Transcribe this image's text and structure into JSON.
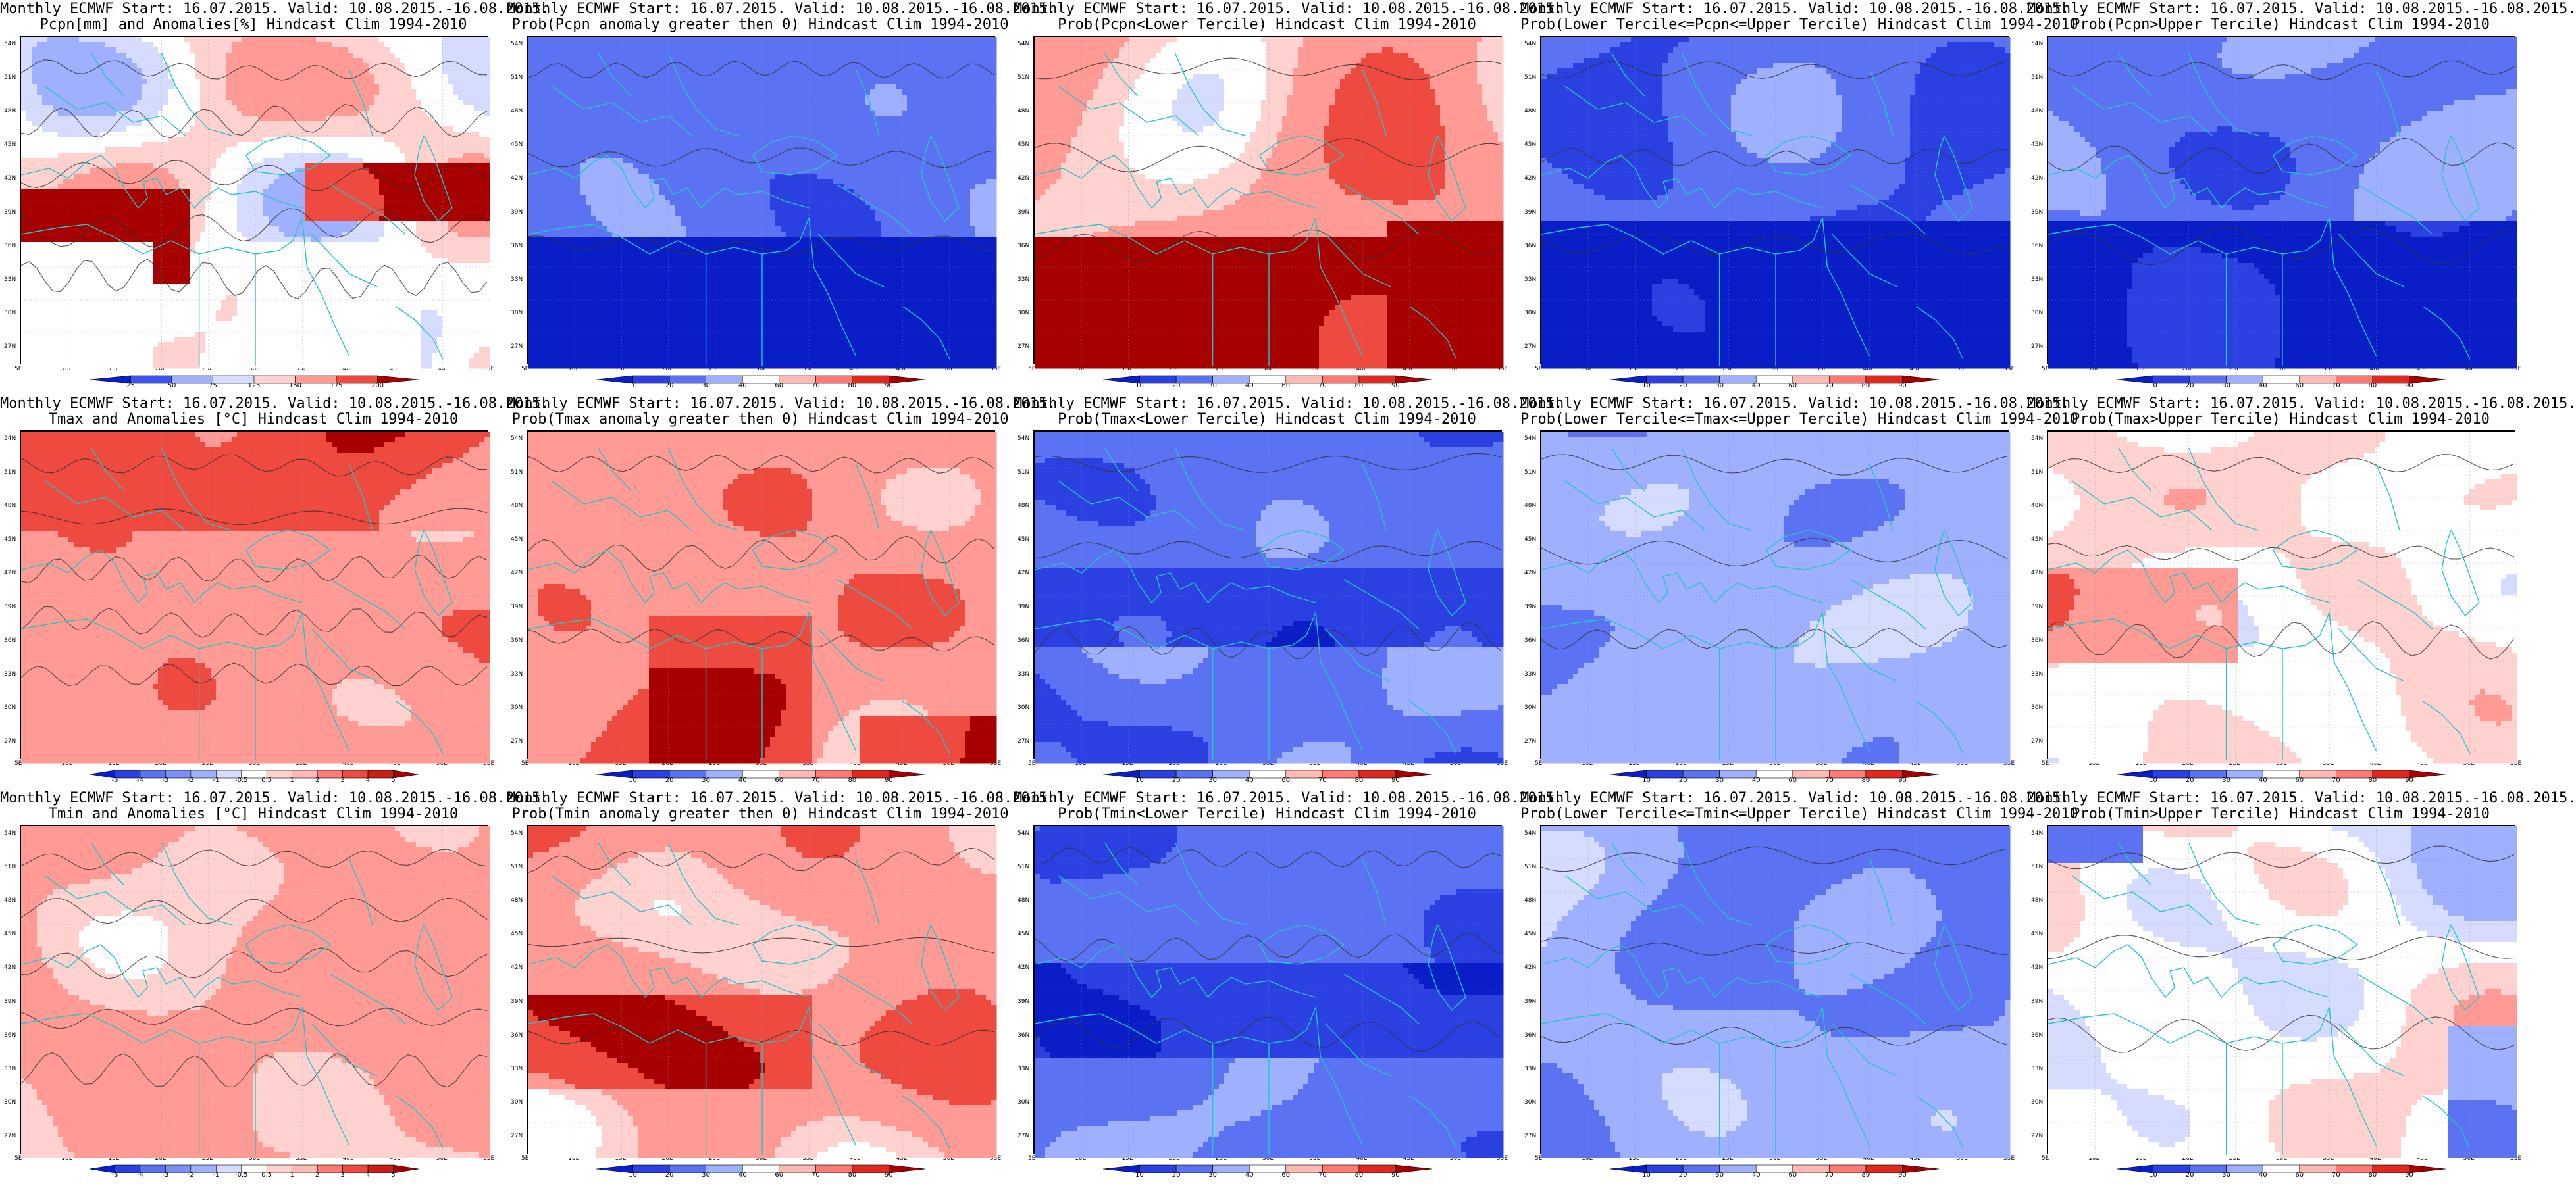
{
  "layout_meta": {
    "columns": 5,
    "rows": 3
  },
  "axes": {
    "lat_labels": [
      "54N",
      "51N",
      "48N",
      "45N",
      "42N",
      "39N",
      "36N",
      "33N",
      "30N",
      "27N"
    ],
    "lon_labels": [
      "5E",
      "10E",
      "15E",
      "20E",
      "25E",
      "30E",
      "35E",
      "40E",
      "45E",
      "50E",
      "55E"
    ]
  },
  "colors": {
    "coast": "#22c6c6",
    "contour": "#333333",
    "deep_blue": "#0a1ec8",
    "mid_blue": "#3b55ee",
    "light_blue": "#9fb0ff",
    "pale_blue": "#d6dcff",
    "white": "#ffffff",
    "pale_red": "#ffd2cf",
    "light_red": "#ff9a94",
    "mid_red": "#ef4a40",
    "deep_red": "#a60000"
  },
  "panels": [
    {
      "id": "pcpn-anom",
      "title_line1": "Monthly ECMWF Start: 16.07.2015. Valid: 10.08.2015.-16.08.2015.",
      "title_line2": "Pcpn[mm] and Anomalies[%] Hindcast Clim 1994-2010",
      "palette": "pcpn",
      "pattern": "pcpn_anom",
      "colorbar": {
        "ticks": [
          "25",
          "50",
          "75",
          "125",
          "150",
          "175",
          "200"
        ],
        "colors": [
          "#0a1ec8",
          "#3b55ee",
          "#9fb0ff",
          "#d6dcff",
          "#ffd2cf",
          "#ff9a94",
          "#ef4a40",
          "#a60000"
        ]
      }
    },
    {
      "id": "pcpn-prob-gt0",
      "title_line1": "Monthly ECMWF Start: 16.07.2015. Valid: 10.08.2015.-16.08.2015.",
      "title_line2": "Prob(Pcpn anomaly greater then 0) Hindcast Clim 1994-2010",
      "palette": "prob",
      "pattern": "pcpn_gt0",
      "colorbar": {
        "ticks": [
          "10",
          "20",
          "30",
          "40",
          "60",
          "70",
          "80",
          "90"
        ],
        "colors": [
          "#0a1ec8",
          "#2a40e0",
          "#5b73f2",
          "#9fb0ff",
          "#ffffff",
          "#ffb9b4",
          "#ff7a72",
          "#e02a20",
          "#a60000"
        ]
      }
    },
    {
      "id": "pcpn-prob-lower",
      "title_line1": "Monthly ECMWF Start: 16.07.2015. Valid: 10.08.2015.-16.08.2015.",
      "title_line2": "Prob(Pcpn<Lower Tercile) Hindcast Clim 1994-2010",
      "palette": "prob",
      "pattern": "pcpn_lower",
      "colorbar": {
        "ticks": [
          "10",
          "20",
          "30",
          "40",
          "60",
          "70",
          "80",
          "90"
        ],
        "colors": [
          "#0a1ec8",
          "#2a40e0",
          "#5b73f2",
          "#9fb0ff",
          "#ffffff",
          "#ffb9b4",
          "#ff7a72",
          "#e02a20",
          "#a60000"
        ]
      }
    },
    {
      "id": "pcpn-prob-middle",
      "title_line1": "Monthly ECMWF Start: 16.07.2015. Valid: 10.08.2015.-16.08.2015.",
      "title_line2": "Prob(Lower Tercile<=Pcpn<=Upper Tercile) Hindcast Clim 1994-2010",
      "palette": "prob",
      "pattern": "pcpn_middle",
      "colorbar": {
        "ticks": [
          "10",
          "20",
          "30",
          "40",
          "60",
          "70",
          "80",
          "90"
        ],
        "colors": [
          "#0a1ec8",
          "#2a40e0",
          "#5b73f2",
          "#9fb0ff",
          "#ffffff",
          "#ffb9b4",
          "#ff7a72",
          "#e02a20",
          "#a60000"
        ]
      }
    },
    {
      "id": "pcpn-prob-upper",
      "title_line1": "Monthly ECMWF Start: 16.07.2015. Valid: 10.08.2015.-16.08.2015.",
      "title_line2": "Prob(Pcpn>Upper Tercile) Hindcast Clim 1994-2010",
      "palette": "prob",
      "pattern": "pcpn_upper",
      "colorbar": {
        "ticks": [
          "10",
          "20",
          "30",
          "40",
          "60",
          "70",
          "80",
          "90"
        ],
        "colors": [
          "#0a1ec8",
          "#2a40e0",
          "#5b73f2",
          "#9fb0ff",
          "#ffffff",
          "#ffb9b4",
          "#ff7a72",
          "#e02a20",
          "#a60000"
        ]
      }
    },
    {
      "id": "tmax-anom",
      "title_line1": "Monthly ECMWF Start: 16.07.2015. Valid: 10.08.2015.-16.08.2015.",
      "title_line2": "Tmax and Anomalies [°C] Hindcast Clim 1994-2010",
      "palette": "temp",
      "pattern": "tmax_anom",
      "colorbar": {
        "ticks": [
          "-5",
          "-4",
          "-3",
          "-2",
          "-1",
          "-0.5",
          "0.5",
          "1",
          "2",
          "3",
          "4",
          "5"
        ],
        "colors": [
          "#0a1ec8",
          "#2a40e0",
          "#5b73f2",
          "#7d8ff5",
          "#9fb0ff",
          "#d6dcff",
          "#ffffff",
          "#ffd2cf",
          "#ffb9b4",
          "#ff7a72",
          "#ef4a40",
          "#c81e14",
          "#a60000"
        ]
      }
    },
    {
      "id": "tmax-prob-gt0",
      "title_line1": "Monthly ECMWF Start: 16.07.2015. Valid: 10.08.2015.-16.08.2015.",
      "title_line2": "Prob(Tmax anomaly greater then 0) Hindcast Clim 1994-2010",
      "palette": "prob",
      "pattern": "tmax_gt0",
      "colorbar": {
        "ticks": [
          "10",
          "20",
          "30",
          "40",
          "60",
          "70",
          "80",
          "90"
        ],
        "colors": [
          "#0a1ec8",
          "#2a40e0",
          "#5b73f2",
          "#9fb0ff",
          "#ffffff",
          "#ffb9b4",
          "#ff7a72",
          "#e02a20",
          "#a60000"
        ]
      }
    },
    {
      "id": "tmax-prob-lower",
      "title_line1": "Monthly ECMWF Start: 16.07.2015. Valid: 10.08.2015.-16.08.2015.",
      "title_line2": "Prob(Tmax<Lower Tercile) Hindcast Clim 1994-2010",
      "palette": "prob",
      "pattern": "tmax_lower",
      "colorbar": {
        "ticks": [
          "10",
          "20",
          "30",
          "40",
          "60",
          "70",
          "80",
          "90"
        ],
        "colors": [
          "#0a1ec8",
          "#2a40e0",
          "#5b73f2",
          "#9fb0ff",
          "#ffffff",
          "#ffb9b4",
          "#ff7a72",
          "#e02a20",
          "#a60000"
        ]
      }
    },
    {
      "id": "tmax-prob-middle",
      "title_line1": "Monthly ECMWF Start: 16.07.2015. Valid: 10.08.2015.-16.08.2015.",
      "title_line2": "Prob(Lower Tercile<=Tmax<=Upper Tercile) Hindcast Clim 1994-2010",
      "palette": "prob",
      "pattern": "tmax_middle",
      "colorbar": {
        "ticks": [
          "10",
          "20",
          "30",
          "40",
          "60",
          "70",
          "80",
          "90"
        ],
        "colors": [
          "#0a1ec8",
          "#2a40e0",
          "#5b73f2",
          "#9fb0ff",
          "#ffffff",
          "#ffb9b4",
          "#ff7a72",
          "#e02a20",
          "#a60000"
        ]
      }
    },
    {
      "id": "tmax-prob-upper",
      "title_line1": "Monthly ECMWF Start: 16.07.2015. Valid: 10.08.2015.-16.08.2015.",
      "title_line2": "Prob(Tmax>Upper Tercile) Hindcast Clim 1994-2010",
      "palette": "prob",
      "pattern": "tmax_upper",
      "colorbar": {
        "ticks": [
          "10",
          "20",
          "30",
          "40",
          "60",
          "70",
          "80",
          "90"
        ],
        "colors": [
          "#0a1ec8",
          "#2a40e0",
          "#5b73f2",
          "#9fb0ff",
          "#ffffff",
          "#ffb9b4",
          "#ff7a72",
          "#e02a20",
          "#a60000"
        ]
      }
    },
    {
      "id": "tmin-anom",
      "title_line1": "Monthly ECMWF Start: 16.07.2015. Valid: 10.08.2015.-16.08.2015.",
      "title_line2": "Tmin and Anomalies [°C] Hindcast Clim 1994-2010",
      "palette": "temp",
      "pattern": "tmin_anom",
      "colorbar": {
        "ticks": [
          "-5",
          "-4",
          "-3",
          "-2",
          "-1",
          "-0.5",
          "0.5",
          "1",
          "2",
          "3",
          "4",
          "5"
        ],
        "colors": [
          "#0a1ec8",
          "#2a40e0",
          "#5b73f2",
          "#7d8ff5",
          "#9fb0ff",
          "#d6dcff",
          "#ffffff",
          "#ffd2cf",
          "#ffb9b4",
          "#ff7a72",
          "#ef4a40",
          "#c81e14",
          "#a60000"
        ]
      }
    },
    {
      "id": "tmin-prob-gt0",
      "title_line1": "Monthly ECMWF Start: 16.07.2015. Valid: 10.08.2015.-16.08.2015.",
      "title_line2": "Prob(Tmin anomaly greater then 0) Hindcast Clim 1994-2010",
      "palette": "prob",
      "pattern": "tmin_gt0",
      "colorbar": {
        "ticks": [
          "10",
          "20",
          "30",
          "40",
          "60",
          "70",
          "80",
          "90"
        ],
        "colors": [
          "#0a1ec8",
          "#2a40e0",
          "#5b73f2",
          "#9fb0ff",
          "#ffffff",
          "#ffb9b4",
          "#ff7a72",
          "#e02a20",
          "#a60000"
        ]
      }
    },
    {
      "id": "tmin-prob-lower",
      "title_line1": "Monthly ECMWF Start: 16.07.2015. Valid: 10.08.2015.-16.08.2015.",
      "title_line2": "Prob(Tmin<Lower Tercile) Hindcast Clim 1994-2010",
      "palette": "prob",
      "pattern": "tmin_lower",
      "colorbar": {
        "ticks": [
          "10",
          "20",
          "30",
          "40",
          "60",
          "70",
          "80",
          "90"
        ],
        "colors": [
          "#0a1ec8",
          "#2a40e0",
          "#5b73f2",
          "#9fb0ff",
          "#ffffff",
          "#ffb9b4",
          "#ff7a72",
          "#e02a20",
          "#a60000"
        ]
      }
    },
    {
      "id": "tmin-prob-middle",
      "title_line1": "Monthly ECMWF Start: 16.07.2015. Valid: 10.08.2015.-16.08.2015.",
      "title_line2": "Prob(Lower Tercile<=Tmin<=Upper Tercile) Hindcast Clim 1994-2010",
      "palette": "prob",
      "pattern": "tmin_middle",
      "colorbar": {
        "ticks": [
          "10",
          "20",
          "30",
          "40",
          "60",
          "70",
          "80",
          "90"
        ],
        "colors": [
          "#0a1ec8",
          "#2a40e0",
          "#5b73f2",
          "#9fb0ff",
          "#ffffff",
          "#ffb9b4",
          "#ff7a72",
          "#e02a20",
          "#a60000"
        ]
      }
    },
    {
      "id": "tmin-prob-upper",
      "title_line1": "Monthly ECMWF Start: 16.07.2015. Valid: 10.08.2015.-16.08.2015.",
      "title_line2": "Prob(Tmin>Upper Tercile) Hindcast Clim 1994-2010",
      "palette": "prob",
      "pattern": "tmin_upper",
      "colorbar": {
        "ticks": [
          "10",
          "20",
          "30",
          "40",
          "60",
          "70",
          "80",
          "90"
        ],
        "colors": [
          "#0a1ec8",
          "#2a40e0",
          "#5b73f2",
          "#9fb0ff",
          "#ffffff",
          "#ffb9b4",
          "#ff7a72",
          "#e02a20",
          "#a60000"
        ]
      }
    }
  ]
}
